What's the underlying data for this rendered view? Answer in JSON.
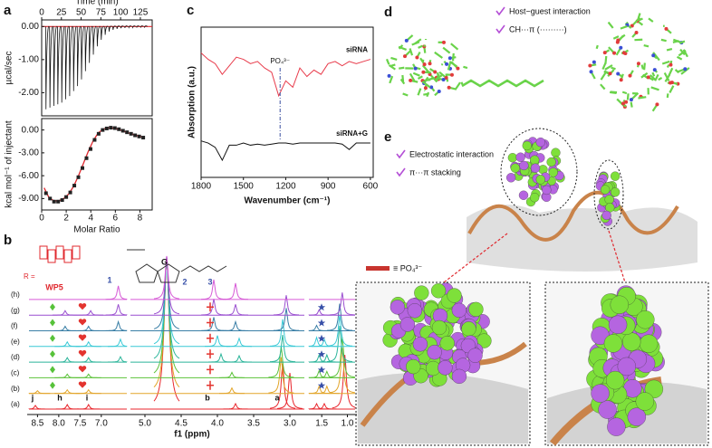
{
  "panels": {
    "a": {
      "label": "a",
      "top": {
        "type": "spikes",
        "xlabel": "Time (min)",
        "ylabel": "µcal/sec",
        "xlim": [
          0,
          140
        ],
        "xticks": [
          0,
          25,
          50,
          75,
          100,
          125
        ],
        "ylim": [
          -2.7,
          0.2
        ],
        "yticks": [
          {
            "value": 0,
            "label": "0.00"
          },
          {
            "value": -1,
            "label": "-1.00"
          },
          {
            "value": -2,
            "label": "-2.00"
          }
        ],
        "x": [
          5,
          10,
          15,
          20,
          25,
          30,
          35,
          40,
          45,
          50,
          55,
          60,
          65,
          70,
          75,
          80,
          85,
          90,
          95,
          100,
          105,
          110,
          115,
          120,
          125,
          130
        ],
        "values": [
          -2.5,
          -2.45,
          -2.4,
          -2.35,
          -2.3,
          -2.2,
          -2.1,
          -1.95,
          -1.8,
          -1.6,
          -1.35,
          -1.1,
          -0.85,
          -0.6,
          -0.4,
          -0.25,
          -0.15,
          -0.1,
          -0.07,
          -0.05,
          -0.04,
          -0.03,
          -0.03,
          -0.02,
          -0.02,
          -0.02
        ],
        "color": "#111111",
        "baseline_color": "#e0282e"
      },
      "bottom": {
        "type": "scatter",
        "xlabel": "Molar Ratio",
        "ylabel": "kcal mol⁻¹ of injectant",
        "xlim": [
          0,
          9
        ],
        "xticks": [
          0,
          2,
          4,
          6,
          8
        ],
        "ylim": [
          -10.5,
          1.5
        ],
        "yticks": [
          {
            "value": 0,
            "label": "0.00"
          },
          {
            "value": -3,
            "label": "-3.00"
          },
          {
            "value": -6,
            "label": "-6.00"
          },
          {
            "value": -9,
            "label": "-9.00"
          }
        ],
        "points": {
          "color": "#222222",
          "x": [
            0.35,
            0.68,
            1.01,
            1.34,
            1.67,
            2.0,
            2.33,
            2.66,
            2.99,
            3.32,
            3.65,
            3.98,
            4.31,
            4.64,
            4.97,
            5.3,
            5.63,
            5.96,
            6.29,
            6.62,
            6.95,
            7.28,
            7.61,
            7.94,
            8.27
          ],
          "values": [
            -8.3,
            -9.0,
            -9.4,
            -9.4,
            -9.2,
            -8.8,
            -8.2,
            -7.3,
            -6.2,
            -5.0,
            -3.7,
            -2.5,
            -1.3,
            -0.5,
            0.0,
            0.2,
            0.3,
            0.25,
            0.1,
            -0.1,
            -0.3,
            -0.5,
            -0.7,
            -0.85,
            -1.0
          ]
        },
        "fit": {
          "color": "#e0282e",
          "x": [
            0.2,
            0.6,
            1.0,
            1.4,
            1.8,
            2.2,
            2.6,
            3.0,
            3.4,
            3.8,
            4.2,
            4.6,
            5.0,
            5.4,
            5.8,
            6.2,
            6.6,
            7.0,
            7.4,
            7.8,
            8.2
          ],
          "values": [
            -7.6,
            -8.9,
            -9.3,
            -9.3,
            -9.0,
            -8.4,
            -7.4,
            -6.0,
            -4.4,
            -2.8,
            -1.4,
            -0.4,
            0.1,
            0.3,
            0.25,
            0.1,
            -0.1,
            -0.35,
            -0.55,
            -0.75,
            -0.9
          ]
        }
      }
    },
    "b": {
      "label": "b",
      "xlabel": "f1 (ppm)",
      "segments": [
        {
          "xlim": [
            8.7,
            6.4
          ],
          "xticks": [
            8.5,
            {
              "value": 8,
              "label": "8.0"
            },
            7.5,
            {
              "value": 7,
              "label": "7.0"
            }
          ]
        },
        {
          "xlim": [
            5.2,
            2.8
          ],
          "xticks": [
            {
              "value": 5,
              "label": "5.0"
            },
            4.5,
            {
              "value": 4,
              "label": "4.0"
            },
            3.5,
            {
              "value": 3,
              "label": "3.0"
            }
          ]
        },
        {
          "xlim": [
            1.75,
            0.85
          ],
          "xticks": [
            1.5,
            {
              "value": 1,
              "label": "1.0"
            }
          ]
        }
      ],
      "traces": [
        {
          "label": "(a)",
          "color": "#e8262c",
          "peaks": [
            {
              "ppm": 8.55,
              "height": 0.4
            },
            {
              "ppm": 7.8,
              "height": 0.5
            },
            {
              "ppm": 7.3,
              "height": 0.5
            },
            {
              "ppm": 4.7,
              "height": 16.7
            },
            {
              "ppm": 3.75,
              "height": 0.6
            },
            {
              "ppm": 3.1,
              "height": 5
            },
            {
              "ppm": 3.0,
              "height": 4
            },
            {
              "ppm": 1.6,
              "height": 0.6
            },
            {
              "ppm": 1.45,
              "height": 0.6
            },
            {
              "ppm": 1.05,
              "height": 6
            }
          ]
        },
        {
          "label": "(b)",
          "color": "#e2a52a",
          "peaks": [
            {
              "ppm": 8.5,
              "height": 0.3
            },
            {
              "ppm": 7.8,
              "height": 0.4
            },
            {
              "ppm": 7.3,
              "height": 0.4
            },
            {
              "ppm": 4.7,
              "height": 15
            },
            {
              "ppm": 3.8,
              "height": 0.6
            },
            {
              "ppm": 3.12,
              "height": 4
            },
            {
              "ppm": 1.55,
              "height": 0.8
            },
            {
              "ppm": 1.4,
              "height": 0.8
            },
            {
              "ppm": 1.1,
              "height": 5
            }
          ]
        },
        {
          "label": "(c)",
          "color": "#5cc23a",
          "peaks": [
            {
              "ppm": 7.8,
              "height": 0.4
            },
            {
              "ppm": 7.3,
              "height": 0.4
            },
            {
              "ppm": 4.7,
              "height": 13.3
            },
            {
              "ppm": 3.8,
              "height": 0.6
            },
            {
              "ppm": 3.12,
              "height": 3.5
            },
            {
              "ppm": 1.55,
              "height": 0.8
            },
            {
              "ppm": 1.4,
              "height": 0.7
            },
            {
              "ppm": 1.1,
              "height": 4.5
            }
          ]
        },
        {
          "label": "(d)",
          "color": "#2bb59a",
          "peaks": [
            {
              "ppm": 7.8,
              "height": 0.5
            },
            {
              "ppm": 7.3,
              "height": 0.5
            },
            {
              "ppm": 6.55,
              "height": 0.6
            },
            {
              "ppm": 4.7,
              "height": 11.6
            },
            {
              "ppm": 3.95,
              "height": 0.9
            },
            {
              "ppm": 3.7,
              "height": 0.7
            },
            {
              "ppm": 3.1,
              "height": 3
            },
            {
              "ppm": 1.55,
              "height": 0.8
            },
            {
              "ppm": 1.4,
              "height": 0.8
            },
            {
              "ppm": 1.15,
              "height": 4
            }
          ]
        },
        {
          "label": "(e)",
          "color": "#38c9d6",
          "peaks": [
            {
              "ppm": 7.8,
              "height": 0.5
            },
            {
              "ppm": 7.3,
              "height": 0.5
            },
            {
              "ppm": 6.55,
              "height": 0.8
            },
            {
              "ppm": 4.7,
              "height": 9.9
            },
            {
              "ppm": 4.0,
              "height": 1.2
            },
            {
              "ppm": 3.7,
              "height": 0.9
            },
            {
              "ppm": 3.1,
              "height": 3
            },
            {
              "ppm": 1.6,
              "height": 1
            },
            {
              "ppm": 1.45,
              "height": 0.8
            },
            {
              "ppm": 1.15,
              "height": 3.5
            }
          ]
        },
        {
          "label": "(f)",
          "color": "#3a7fa6",
          "peaks": [
            {
              "ppm": 7.85,
              "height": 0.5
            },
            {
              "ppm": 7.3,
              "height": 0.5
            },
            {
              "ppm": 6.6,
              "height": 1
            },
            {
              "ppm": 4.7,
              "height": 8.2
            },
            {
              "ppm": 4.05,
              "height": 1.5
            },
            {
              "ppm": 3.75,
              "height": 1
            },
            {
              "ppm": 3.05,
              "height": 2.5
            },
            {
              "ppm": 1.6,
              "height": 0.6
            },
            {
              "ppm": 1.15,
              "height": 3
            }
          ]
        },
        {
          "label": "(g)",
          "color": "#9a4fd0",
          "peaks": [
            {
              "ppm": 7.85,
              "height": 0.5
            },
            {
              "ppm": 7.25,
              "height": 0.5
            },
            {
              "ppm": 6.6,
              "height": 1.2
            },
            {
              "ppm": 4.7,
              "height": 6.5
            },
            {
              "ppm": 4.05,
              "height": 1.8
            },
            {
              "ppm": 3.75,
              "height": 1.2
            },
            {
              "ppm": 3.05,
              "height": 2.2
            },
            {
              "ppm": 1.55,
              "height": 0.6
            },
            {
              "ppm": 1.1,
              "height": 2.5
            }
          ]
        },
        {
          "label": "(h)",
          "color": "#d65ad6",
          "peaks": [
            {
              "ppm": 6.6,
              "height": 1.5
            },
            {
              "ppm": 4.7,
              "height": 4.8
            },
            {
              "ppm": 4.05,
              "height": 2.2
            },
            {
              "ppm": 3.75,
              "height": 1.8
            }
          ]
        }
      ],
      "annotations": [
        "1",
        "2",
        "3",
        "j",
        "h",
        "i",
        "b",
        "a"
      ],
      "structure_labels": [
        "WP5",
        "G",
        "R ="
      ]
    },
    "c": {
      "label": "c",
      "xlabel": "Wavenumber (cm⁻¹)",
      "ylabel": "Absorption (a.u.)",
      "xlim": [
        1800,
        580
      ],
      "xticks": [
        1800,
        1500,
        1200,
        900,
        600
      ],
      "ylim": [
        1.5,
        8.5
      ],
      "x": [
        1800,
        1750,
        1700,
        1650,
        1600,
        1550,
        1500,
        1450,
        1400,
        1350,
        1300,
        1250,
        1200,
        1150,
        1100,
        1050,
        1000,
        950,
        900,
        850,
        800,
        750,
        700,
        650,
        600
      ],
      "series": [
        {
          "name": "siRNA",
          "color": "#e83a4a",
          "values": [
            7.3,
            7.0,
            6.8,
            6.3,
            6.7,
            7.1,
            7.0,
            6.8,
            6.9,
            6.6,
            6.4,
            5.3,
            6.0,
            5.7,
            6.6,
            6.2,
            6.5,
            6.3,
            6.8,
            6.9,
            6.7,
            6.9,
            6.8,
            6.9,
            7.0
          ]
        },
        {
          "name": "siRNA+G",
          "color": "#111111",
          "values": [
            3.2,
            3.1,
            2.9,
            2.3,
            3.0,
            3.0,
            3.1,
            3.0,
            3.05,
            3.0,
            3.05,
            3.1,
            3.1,
            3.05,
            3.1,
            3.1,
            3.1,
            3.1,
            3.1,
            3.1,
            3.05,
            2.8,
            3.1,
            3.1,
            3.1
          ]
        }
      ],
      "annotation": {
        "text": "PO₄³⁻",
        "x": 1240
      }
    },
    "d": {
      "label": "d",
      "legend": [
        "Host−guest interaction",
        "CH···π (·········)"
      ]
    },
    "e": {
      "label": "e",
      "legend": [
        "Electrostatic interaction",
        "π···π stacking"
      ],
      "phosphate_key": "≡ PO₄³⁻"
    }
  }
}
